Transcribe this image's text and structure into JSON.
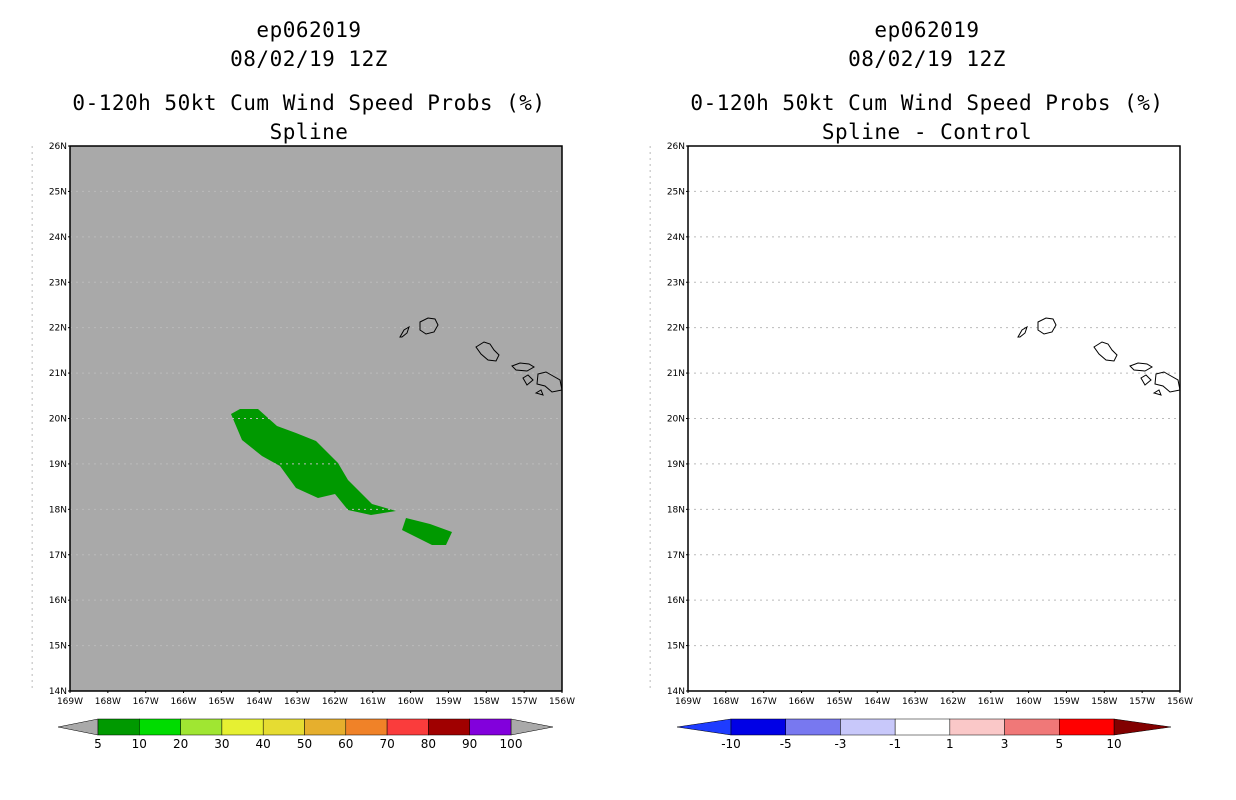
{
  "panels": [
    {
      "storm_id": "ep062019",
      "datetime": "08/02/19 12Z",
      "product": "0-120h 50kt Cum Wind Speed Probs (%)",
      "subtitle": "Spline",
      "background_color": "#a9a9a9",
      "shade_color": "#009900",
      "colorbar": {
        "left_arrow_color": "#a9a9a9",
        "right_arrow_color": "#a9a9a9",
        "colors": [
          "#009900",
          "#00dc00",
          "#a0e632",
          "#e6f032",
          "#e6dc32",
          "#e6af2d",
          "#f08228",
          "#fa3c3c",
          "#a00000",
          "#8200dc"
        ],
        "labels": [
          "5",
          "10",
          "20",
          "30",
          "40",
          "50",
          "60",
          "70",
          "80",
          "90",
          "100"
        ]
      }
    },
    {
      "storm_id": "ep062019",
      "datetime": "08/02/19 12Z",
      "product": "0-120h 50kt Cum Wind Speed Probs (%)",
      "subtitle": "Spline - Control",
      "background_color": "#ffffff",
      "colorbar": {
        "left_arrow_color": "#1e3cff",
        "right_arrow_color": "#820000",
        "colors": [
          "#0000e6",
          "#7878f0",
          "#c8c8fa",
          "#ffffff",
          "#fac8c8",
          "#f07878",
          "#ff0000"
        ],
        "labels": [
          "-10",
          "-5",
          "-3",
          "-1",
          "1",
          "3",
          "5",
          "10"
        ]
      }
    }
  ],
  "axes": {
    "lat_labels": [
      "26N",
      "25N",
      "24N",
      "23N",
      "22N",
      "21N",
      "20N",
      "19N",
      "18N",
      "17N",
      "16N",
      "15N",
      "14N"
    ],
    "lon_labels": [
      "169W",
      "168W",
      "167W",
      "166W",
      "165W",
      "164W",
      "163W",
      "162W",
      "161W",
      "160W",
      "159W",
      "158W",
      "157W",
      "156W"
    ],
    "grid_color": "#bbbbbb"
  }
}
